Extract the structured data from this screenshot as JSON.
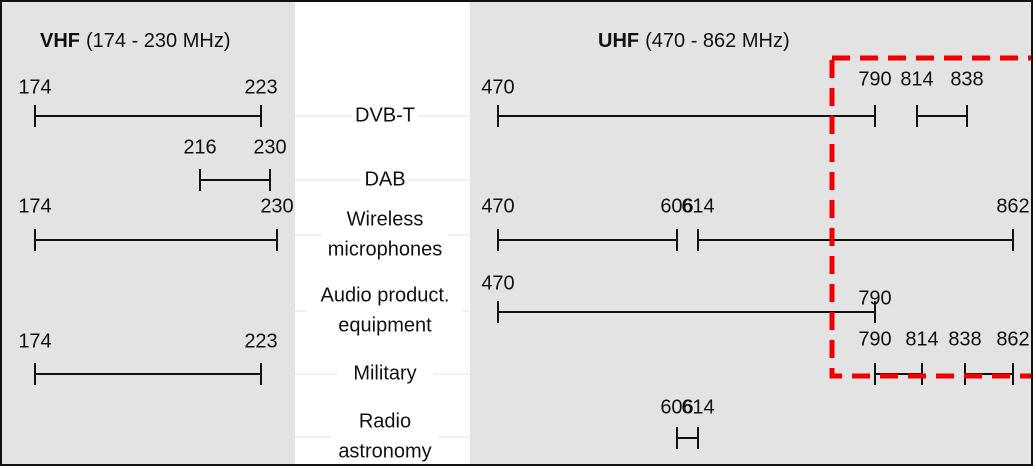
{
  "headers": [
    {
      "name": "VHF",
      "range": "(174 - 230 MHz)"
    },
    {
      "name": "UHF",
      "range": "(470 - 862 MHz)"
    }
  ],
  "rows": [
    {
      "label": [
        "DVB-T"
      ],
      "ticks": [
        174,
        223,
        470,
        790,
        814,
        838
      ]
    },
    {
      "label": [
        "DAB"
      ],
      "ticks": [
        216,
        230
      ]
    },
    {
      "label": [
        "Wireless",
        "microphones"
      ],
      "ticks": [
        174,
        230,
        470,
        606,
        614,
        862
      ]
    },
    {
      "label": [
        "Audio product.",
        "equipment"
      ],
      "ticks": [
        470,
        790
      ]
    },
    {
      "label": [
        "Military"
      ],
      "ticks": [
        174,
        223,
        790,
        814,
        838,
        862
      ]
    },
    {
      "label": [
        "Radio",
        "astronomy"
      ],
      "ticks": [
        606,
        614
      ]
    }
  ]
}
